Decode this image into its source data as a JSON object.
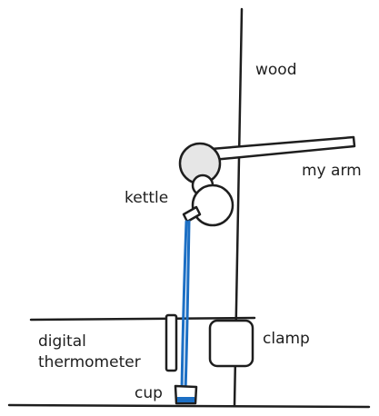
{
  "labels": {
    "wood": "wood",
    "my_arm": "my arm",
    "kettle": "kettle",
    "clamp": "clamp",
    "thermometer_line1": "digital",
    "thermometer_line2": "thermometer",
    "cup": "cup"
  },
  "colors": {
    "ink": "#1e1e1e",
    "arm_joint_fill": "#e6e6e6",
    "water": "#1c6fc4"
  }
}
